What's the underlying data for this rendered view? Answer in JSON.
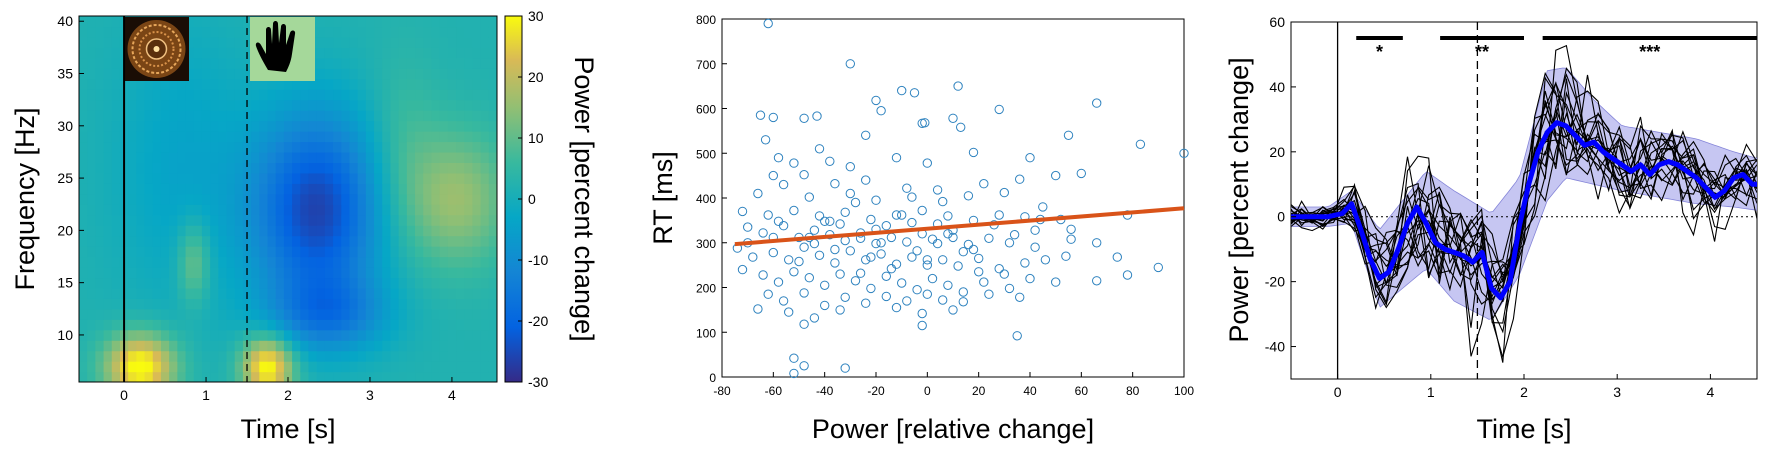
{
  "chart_data": [
    {
      "type": "heatmap",
      "xlabel": "Time [s]",
      "ylabel": "Frequency [Hz]",
      "colorbar_label": "Power [percent change]",
      "x_range": [
        -0.55,
        4.55
      ],
      "y_range": [
        5.5,
        40.5
      ],
      "x_ticks": [
        "0",
        "1",
        "2",
        "3",
        "4"
      ],
      "y_ticks": [
        "10",
        "15",
        "20",
        "25",
        "30",
        "35",
        "40"
      ],
      "color_range": [
        -30,
        30
      ],
      "colorbar_ticks": [
        "30",
        "20",
        "10",
        "0",
        "-10",
        "-20",
        "-30"
      ],
      "colormap": "parula",
      "event_lines": [
        {
          "t": 0,
          "style": "solid"
        },
        {
          "t": 1.5,
          "style": "dashed"
        }
      ],
      "event_icons": [
        "circular-pattern-stimulus",
        "hand-response"
      ],
      "features": [
        {
          "t": [
            0,
            0.6
          ],
          "f": [
            6,
            10
          ],
          "value": 28
        },
        {
          "t": [
            0.7,
            1.0
          ],
          "f": [
            14,
            20
          ],
          "value": 12
        },
        {
          "t": [
            1.6,
            2.0
          ],
          "f": [
            6,
            10
          ],
          "value": 28
        },
        {
          "t": [
            1.6,
            3.1
          ],
          "f": [
            10,
            32
          ],
          "value": -27
        },
        {
          "t": [
            3.6,
            4.5
          ],
          "f": [
            18,
            28
          ],
          "value": 14
        }
      ]
    },
    {
      "type": "scatter",
      "xlabel": "Power [relative change]",
      "ylabel": "RT [ms]",
      "xlim": [
        -80,
        100
      ],
      "ylim": [
        0,
        800
      ],
      "x_ticks": [
        "-80",
        "-60",
        "-40",
        "-20",
        "0",
        "20",
        "40",
        "60",
        "80",
        "100"
      ],
      "y_ticks": [
        "0",
        "100",
        "200",
        "300",
        "400",
        "500",
        "600",
        "700",
        "800"
      ],
      "marker_color": "#2f83bf",
      "fit_line": {
        "x": [
          -75,
          100
        ],
        "y": [
          297,
          377
        ],
        "color": "#d95319"
      },
      "points": [
        [
          -62,
          790
        ],
        [
          -30,
          700
        ],
        [
          -65,
          585
        ],
        [
          -60,
          580
        ],
        [
          -48,
          578
        ],
        [
          -43,
          583
        ],
        [
          -20,
          618
        ],
        [
          -18,
          595
        ],
        [
          -10,
          640
        ],
        [
          -5,
          635
        ],
        [
          12,
          650
        ],
        [
          28,
          598
        ],
        [
          -63,
          530
        ],
        [
          -42,
          510
        ],
        [
          -24,
          540
        ],
        [
          -2,
          567
        ],
        [
          -1,
          568
        ],
        [
          10,
          578
        ],
        [
          13,
          558
        ],
        [
          66,
          612
        ],
        [
          55,
          540
        ],
        [
          83,
          520
        ],
        [
          100,
          500
        ],
        [
          -58,
          490
        ],
        [
          -52,
          478
        ],
        [
          -38,
          482
        ],
        [
          -30,
          470
        ],
        [
          -12,
          490
        ],
        [
          0,
          478
        ],
        [
          18,
          502
        ],
        [
          40,
          490
        ],
        [
          -60,
          450
        ],
        [
          -48,
          452
        ],
        [
          -36,
          432
        ],
        [
          -24,
          440
        ],
        [
          -8,
          422
        ],
        [
          4,
          418
        ],
        [
          22,
          432
        ],
        [
          36,
          442
        ],
        [
          50,
          450
        ],
        [
          -66,
          410
        ],
        [
          -56,
          430
        ],
        [
          -46,
          402
        ],
        [
          -30,
          410
        ],
        [
          -20,
          395
        ],
        [
          -6,
          402
        ],
        [
          6,
          392
        ],
        [
          16,
          405
        ],
        [
          30,
          412
        ],
        [
          45,
          380
        ],
        [
          60,
          455
        ],
        [
          -72,
          370
        ],
        [
          -62,
          362
        ],
        [
          -52,
          372
        ],
        [
          -42,
          360
        ],
        [
          -32,
          368
        ],
        [
          -22,
          352
        ],
        [
          -12,
          362
        ],
        [
          -2,
          372
        ],
        [
          8,
          360
        ],
        [
          18,
          350
        ],
        [
          28,
          362
        ],
        [
          38,
          358
        ],
        [
          52,
          352
        ],
        [
          78,
          362
        ],
        [
          -70,
          335
        ],
        [
          -64,
          322
        ],
        [
          -56,
          338
        ],
        [
          -50,
          312
        ],
        [
          -44,
          328
        ],
        [
          -38,
          318
        ],
        [
          -32,
          305
        ],
        [
          -26,
          322
        ],
        [
          -20,
          298
        ],
        [
          -14,
          312
        ],
        [
          -8,
          302
        ],
        [
          -2,
          320
        ],
        [
          4,
          298
        ],
        [
          10,
          312
        ],
        [
          16,
          296
        ],
        [
          24,
          310
        ],
        [
          32,
          300
        ],
        [
          42,
          290
        ],
        [
          56,
          308
        ],
        [
          66,
          300
        ],
        [
          -74,
          288
        ],
        [
          -68,
          268
        ],
        [
          -60,
          278
        ],
        [
          -54,
          262
        ],
        [
          -48,
          290
        ],
        [
          -42,
          272
        ],
        [
          -36,
          255
        ],
        [
          -30,
          282
        ],
        [
          -24,
          262
        ],
        [
          -18,
          275
        ],
        [
          -12,
          252
        ],
        [
          -6,
          268
        ],
        [
          0,
          250
        ],
        [
          6,
          262
        ],
        [
          12,
          248
        ],
        [
          20,
          265
        ],
        [
          28,
          242
        ],
        [
          38,
          255
        ],
        [
          46,
          262
        ],
        [
          54,
          270
        ],
        [
          74,
          268
        ],
        [
          -72,
          240
        ],
        [
          -64,
          228
        ],
        [
          -58,
          212
        ],
        [
          -52,
          235
        ],
        [
          -46,
          222
        ],
        [
          -40,
          205
        ],
        [
          -34,
          230
        ],
        [
          -28,
          215
        ],
        [
          -22,
          198
        ],
        [
          -16,
          225
        ],
        [
          -10,
          210
        ],
        [
          -4,
          195
        ],
        [
          2,
          220
        ],
        [
          8,
          205
        ],
        [
          14,
          190
        ],
        [
          22,
          212
        ],
        [
          32,
          198
        ],
        [
          40,
          220
        ],
        [
          50,
          212
        ],
        [
          66,
          215
        ],
        [
          78,
          228
        ],
        [
          90,
          245
        ],
        [
          -62,
          185
        ],
        [
          -56,
          170
        ],
        [
          -48,
          188
        ],
        [
          -40,
          160
        ],
        [
          -32,
          178
        ],
        [
          -24,
          165
        ],
        [
          -16,
          180
        ],
        [
          -8,
          170
        ],
        [
          0,
          185
        ],
        [
          6,
          172
        ],
        [
          14,
          168
        ],
        [
          24,
          185
        ],
        [
          36,
          178
        ],
        [
          -66,
          152
        ],
        [
          -54,
          145
        ],
        [
          -44,
          132
        ],
        [
          -34,
          150
        ],
        [
          -12,
          155
        ],
        [
          -2,
          142
        ],
        [
          10,
          150
        ],
        [
          35,
          92
        ],
        [
          -48,
          118
        ],
        [
          -2,
          115
        ],
        [
          -52,
          42
        ],
        [
          -48,
          25
        ],
        [
          -32,
          20
        ],
        [
          -52,
          8
        ],
        [
          -46,
          312
        ],
        [
          -38,
          348
        ],
        [
          -28,
          390
        ],
        [
          -16,
          338
        ],
        [
          -10,
          362
        ],
        [
          -4,
          282
        ],
        [
          2,
          308
        ],
        [
          4,
          342
        ],
        [
          10,
          328
        ],
        [
          18,
          285
        ],
        [
          26,
          340
        ],
        [
          34,
          318
        ],
        [
          44,
          352
        ],
        [
          56,
          330
        ],
        [
          -58,
          348
        ],
        [
          -44,
          298
        ],
        [
          -34,
          342
        ],
        [
          -26,
          232
        ],
        [
          -14,
          242
        ],
        [
          20,
          235
        ],
        [
          30,
          230
        ],
        [
          -60,
          312
        ],
        [
          -50,
          258
        ],
        [
          -40,
          348
        ],
        [
          -36,
          285
        ],
        [
          -20,
          330
        ],
        [
          -6,
          345
        ],
        [
          8,
          320
        ],
        [
          14,
          280
        ],
        [
          42,
          328
        ],
        [
          -22,
          268
        ],
        [
          -26,
          310
        ],
        [
          -18,
          300
        ],
        [
          0,
          262
        ],
        [
          -70,
          300
        ]
      ]
    },
    {
      "type": "line",
      "xlabel": "Time [s]",
      "ylabel": "Power [percent change]",
      "xlim": [
        -0.5,
        4.5
      ],
      "ylim": [
        -50,
        60
      ],
      "x_ticks": [
        "0",
        "1",
        "2",
        "3",
        "4"
      ],
      "y_ticks": [
        "-40",
        "-20",
        "0",
        "20",
        "40",
        "60"
      ],
      "event_lines": [
        {
          "t": 0,
          "style": "solid"
        },
        {
          "t": 1.5,
          "style": "dashed"
        }
      ],
      "significance": [
        {
          "x": [
            0.2,
            0.7
          ],
          "label": "*"
        },
        {
          "x": [
            1.1,
            2.0
          ],
          "label": "**"
        },
        {
          "x": [
            2.2,
            4.5
          ],
          "label": "***"
        }
      ],
      "mean_color": "#0000ff",
      "band_color": "#b3b3ee",
      "series": [
        {
          "role": "mean",
          "x": [
            -0.5,
            -0.3,
            -0.1,
            0.05,
            0.15,
            0.25,
            0.35,
            0.45,
            0.55,
            0.65,
            0.75,
            0.85,
            0.95,
            1.05,
            1.15,
            1.25,
            1.35,
            1.45,
            1.55,
            1.65,
            1.75,
            1.85,
            1.95,
            2.05,
            2.15,
            2.25,
            2.35,
            2.45,
            2.55,
            2.65,
            2.75,
            2.85,
            2.95,
            3.05,
            3.15,
            3.25,
            3.35,
            3.45,
            3.55,
            3.65,
            3.75,
            3.85,
            3.95,
            4.05,
            4.15,
            4.25,
            4.35,
            4.45,
            4.5
          ],
          "y": [
            0,
            0,
            0,
            1,
            4,
            -4,
            -13,
            -19,
            -17,
            -10,
            -2,
            3,
            -2,
            -8,
            -10,
            -11,
            -12,
            -14,
            -11,
            -22,
            -25,
            -20,
            -3,
            10,
            20,
            26,
            29,
            28,
            25,
            22,
            23,
            20,
            18,
            16,
            14,
            16,
            13,
            16,
            17,
            16,
            14,
            12,
            9,
            6,
            8,
            12,
            13,
            10,
            10
          ]
        },
        {
          "role": "upper",
          "x": [
            -0.5,
            -0.1,
            0.15,
            0.45,
            0.95,
            1.25,
            1.65,
            1.95,
            2.25,
            2.45,
            2.75,
            3.05,
            3.45,
            3.85,
            4.25,
            4.5
          ],
          "y": [
            3,
            3,
            8,
            -4,
            14,
            8,
            1,
            12,
            45,
            46,
            36,
            28,
            26,
            24,
            20,
            18
          ]
        },
        {
          "role": "lower",
          "x": [
            -0.5,
            -0.1,
            0.15,
            0.45,
            0.95,
            1.25,
            1.65,
            1.95,
            2.25,
            2.45,
            2.75,
            3.05,
            3.45,
            3.85,
            4.25,
            4.5
          ],
          "y": [
            -3,
            -3,
            -2,
            -28,
            -16,
            -26,
            -32,
            -18,
            5,
            12,
            10,
            8,
            6,
            4,
            3,
            2
          ]
        }
      ]
    }
  ]
}
